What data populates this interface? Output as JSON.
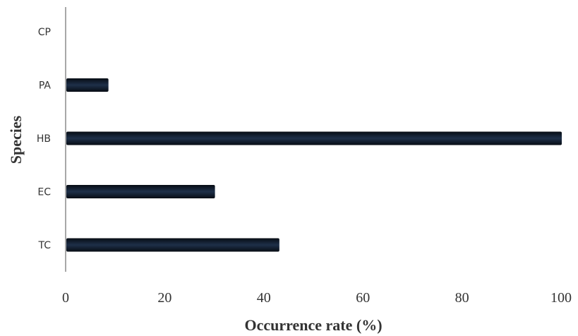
{
  "chart_data": {
    "type": "bar",
    "orientation": "horizontal",
    "categories": [
      "CP",
      "PA",
      "HB",
      "EC",
      "TC"
    ],
    "values": [
      0,
      8.5,
      100,
      30,
      43
    ],
    "xlabel": "Occurrence rate (%)",
    "ylabel": "Species",
    "xlim": [
      0,
      100
    ],
    "xticks": [
      "0",
      "20",
      "40",
      "60",
      "80",
      "100"
    ],
    "grid": false,
    "legend": "none",
    "colors": {
      "bar_center": "#1e3049",
      "bar_edge": "#070c14",
      "axis": "#a8a8a8",
      "text": "#333333"
    }
  }
}
